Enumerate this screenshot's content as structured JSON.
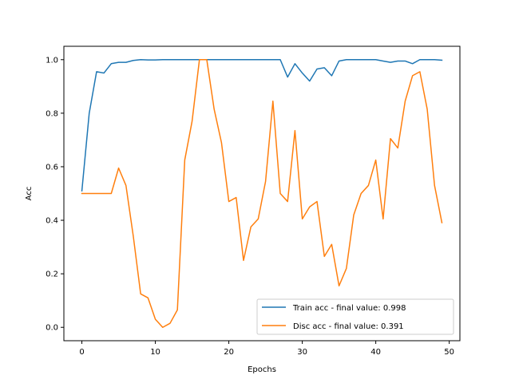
{
  "chart_data": {
    "type": "line",
    "xlabel": "Epochs",
    "ylabel": "Acc",
    "xlim": [
      -2.45,
      51.45
    ],
    "ylim": [
      -0.05,
      1.05
    ],
    "xticks": [
      0,
      10,
      20,
      30,
      40,
      50
    ],
    "yticks": [
      0.0,
      0.2,
      0.4,
      0.6,
      0.8,
      1.0
    ],
    "xtick_labels": [
      "0",
      "10",
      "20",
      "30",
      "40",
      "50"
    ],
    "ytick_labels": [
      "0.0",
      "0.2",
      "0.4",
      "0.6",
      "0.8",
      "1.0"
    ],
    "grid": false,
    "legend_position": "lower right",
    "x": [
      0,
      1,
      2,
      3,
      4,
      5,
      6,
      7,
      8,
      9,
      10,
      11,
      12,
      13,
      14,
      15,
      16,
      17,
      18,
      19,
      20,
      21,
      22,
      23,
      24,
      25,
      26,
      27,
      28,
      29,
      30,
      31,
      32,
      33,
      34,
      35,
      36,
      37,
      38,
      39,
      40,
      41,
      42,
      43,
      44,
      45,
      46,
      47,
      48,
      49
    ],
    "series": [
      {
        "name": "Train acc - final value: 0.998",
        "color": "#1f77b4",
        "values": [
          0.51,
          0.8,
          0.955,
          0.95,
          0.985,
          0.99,
          0.99,
          0.997,
          1.0,
          0.999,
          0.999,
          1.0,
          1.0,
          1.0,
          1.0,
          1.0,
          1.0,
          1.0,
          1.0,
          1.0,
          1.0,
          1.0,
          1.0,
          1.0,
          1.0,
          1.0,
          1.0,
          1.0,
          0.935,
          0.985,
          0.95,
          0.92,
          0.965,
          0.97,
          0.94,
          0.995,
          1.0,
          1.0,
          1.0,
          1.0,
          1.0,
          0.995,
          0.99,
          0.995,
          0.995,
          0.985,
          1.0,
          1.0,
          1.0,
          0.998
        ]
      },
      {
        "name": "Disc acc - final value: 0.391",
        "color": "#ff7f0e",
        "values": [
          0.5,
          0.5,
          0.5,
          0.5,
          0.5,
          0.595,
          0.53,
          0.34,
          0.125,
          0.11,
          0.03,
          0.0,
          0.015,
          0.065,
          0.625,
          0.77,
          1.0,
          1.0,
          0.815,
          0.69,
          0.47,
          0.485,
          0.25,
          0.375,
          0.405,
          0.545,
          0.845,
          0.5,
          0.47,
          0.735,
          0.405,
          0.45,
          0.47,
          0.265,
          0.31,
          0.155,
          0.22,
          0.42,
          0.5,
          0.53,
          0.625,
          0.405,
          0.705,
          0.67,
          0.845,
          0.94,
          0.955,
          0.815,
          0.53,
          0.391
        ]
      }
    ]
  }
}
